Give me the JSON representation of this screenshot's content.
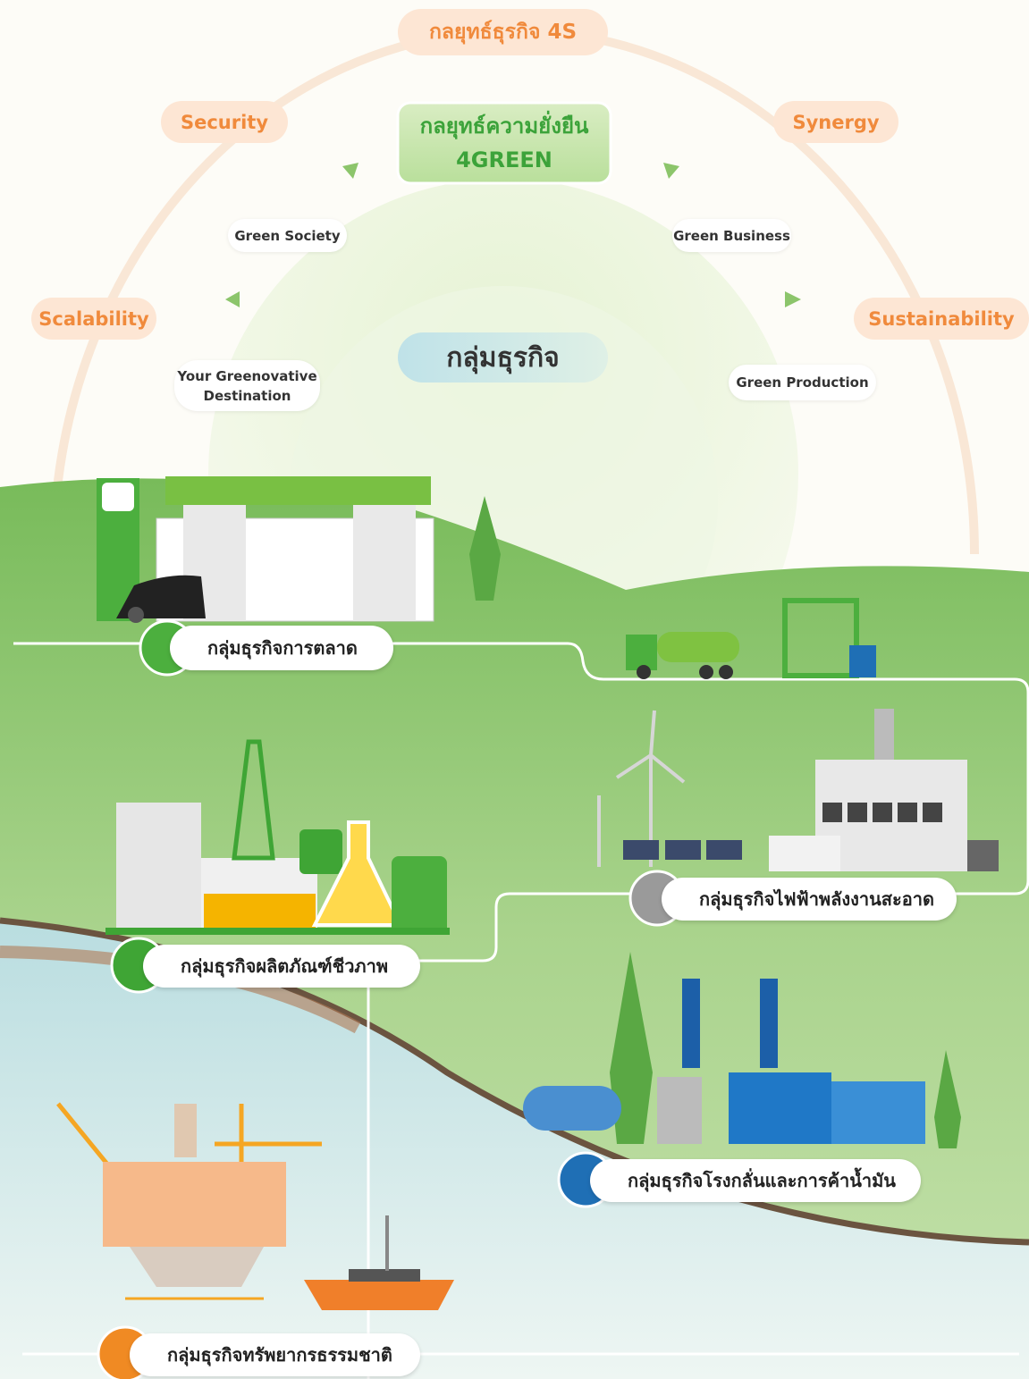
{
  "header": {
    "title": "กลยุทธ์ธุรกิจ 4S"
  },
  "strategy_4s": [
    "Security",
    "Synergy",
    "Scalability",
    "Sustainability"
  ],
  "strategy_4green": {
    "title_lines": [
      "กลยุทธ์ความยั่งยืน",
      "4GREEN"
    ],
    "items": [
      "Green Society",
      "Green Business",
      "Green Production"
    ],
    "destination_lines": [
      "Your Greenovative",
      "Destination"
    ]
  },
  "business_center": "กลุ่มธุรกิจ",
  "business_units": [
    "กลุ่มธุรกิจการตลาด",
    "กลุ่มธุรกิจไฟฟ้าพลังงานสะอาด",
    "กลุ่มธุรกิจผลิตภัณฑ์ชีวภาพ",
    "กลุ่มธุรกิจโรงกลั่นและการค้าน้ำมัน",
    "กลุ่มธุรกิจทรัพยากรธรรมชาติ"
  ]
}
